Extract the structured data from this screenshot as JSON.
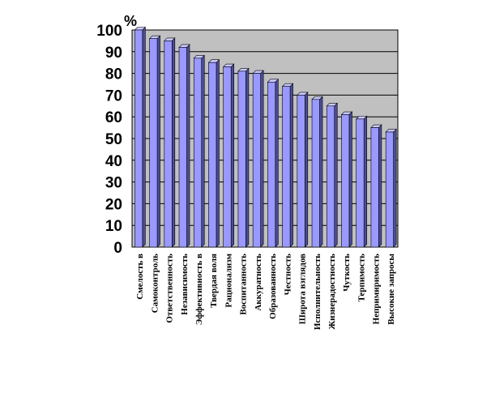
{
  "chart_data": {
    "type": "bar",
    "ylabel": "%",
    "ylim": [
      0,
      100
    ],
    "yticks": [
      "0",
      "10",
      "20",
      "30",
      "40",
      "50",
      "60",
      "70",
      "80",
      "90",
      "100"
    ],
    "grid": true,
    "categories": [
      "Смелость в",
      "Самоконтроль",
      "Ответственность",
      "Независимость",
      "Эффективность в",
      "Твердая воля",
      "Рационализм",
      "Воспитанность",
      "Аккуратность",
      "Образованность",
      "Честность",
      "Широта взглядов",
      "Исполнительность",
      "Жизнерадостность",
      "Чуткость",
      "Терпимость",
      "Непримиримость",
      "Высокие запросы"
    ],
    "values": [
      100,
      96,
      95,
      92,
      87,
      85,
      83,
      81,
      80,
      76,
      74,
      70,
      68,
      65,
      61,
      59,
      55,
      53
    ],
    "colors": {
      "bar_front": "#9999ff",
      "bar_side": "#4d4d99",
      "bar_top": "#c8c8ff",
      "plot_bg": "#c0c0c0",
      "grid": "#000000"
    }
  }
}
